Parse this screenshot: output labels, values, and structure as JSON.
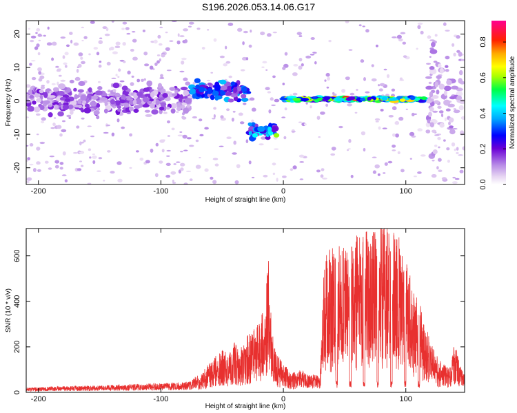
{
  "title": "S196.2026.053.14.06.G17",
  "chart_data": [
    {
      "type": "heatmap",
      "panel": "spectrogram",
      "xlabel": "Height of straight line (km)",
      "ylabel": "Frequency (Hz)",
      "xlim": [
        -210,
        148
      ],
      "ylim": [
        -25,
        24
      ],
      "xticks": [
        -200,
        -100,
        0,
        100
      ],
      "yticks": [
        -20,
        -10,
        0,
        10,
        20
      ],
      "grid": false,
      "colorbar": {
        "label": "Normalized spectral amplitude",
        "range": [
          0,
          0.92
        ],
        "ticks": [
          0.0,
          0.2,
          0.4,
          0.6,
          0.8
        ],
        "tick_labels": [
          "0.0",
          "0.2",
          "0.4",
          "0.6",
          "0.8"
        ],
        "colormap": "rainbow (white-lavender-violet-blue-cyan-green-yellow-orange-red-magenta)"
      },
      "features": [
        {
          "x_range": [
            -210,
            -75
          ],
          "freq_center": 0,
          "freq_spread": 6,
          "amplitude": 0.15,
          "note": "scattered weak noise"
        },
        {
          "x_range": [
            -75,
            -28
          ],
          "freq_center": 3,
          "freq_spread": 4,
          "amplitude": 0.3
        },
        {
          "x_range": [
            -28,
            -5
          ],
          "freq_center": -9,
          "freq_spread": 3,
          "amplitude": 0.35,
          "peak": 0.6
        },
        {
          "x_range": [
            0,
            115
          ],
          "freq_center": 0.5,
          "freq_spread": 1,
          "amplitude": 0.45,
          "peak": 0.85,
          "note": "narrow carrier line"
        },
        {
          "x_range": [
            118,
            148
          ],
          "freq_center": 0,
          "freq_spread": 20,
          "amplitude": 0.1,
          "note": "faint scatter"
        }
      ]
    },
    {
      "type": "line",
      "panel": "snr",
      "xlabel": "Height of straight line (km)",
      "ylabel": "SNR (10 * v/v)",
      "xlim": [
        -210,
        148
      ],
      "ylim": [
        0,
        720
      ],
      "xticks": [
        -200,
        -100,
        0,
        100
      ],
      "yticks": [
        0,
        200,
        400,
        600
      ],
      "grid": false,
      "series": [
        {
          "name": "SNR",
          "color": "#e8302f",
          "x": [
            -210,
            -190,
            -170,
            -150,
            -130,
            -110,
            -90,
            -75,
            -70,
            -65,
            -60,
            -55,
            -50,
            -45,
            -40,
            -35,
            -30,
            -25,
            -20,
            -15,
            -12,
            -10,
            -8,
            -5,
            0,
            5,
            10,
            15,
            20,
            25,
            30,
            33,
            40,
            50,
            60,
            70,
            80,
            90,
            100,
            105,
            110,
            115,
            120,
            125,
            130,
            135,
            140,
            145,
            148
          ],
          "values": [
            15,
            18,
            20,
            22,
            25,
            28,
            30,
            35,
            60,
            90,
            120,
            150,
            180,
            150,
            200,
            180,
            230,
            240,
            300,
            330,
            580,
            300,
            200,
            150,
            130,
            80,
            90,
            100,
            80,
            80,
            70,
            560,
            580,
            600,
            630,
            650,
            680,
            660,
            580,
            420,
            400,
            300,
            200,
            150,
            120,
            100,
            200,
            100,
            70
          ]
        }
      ]
    }
  ],
  "colors": {
    "snr_line": "#e8302f",
    "axes": "#000000",
    "background": "#ffffff"
  }
}
